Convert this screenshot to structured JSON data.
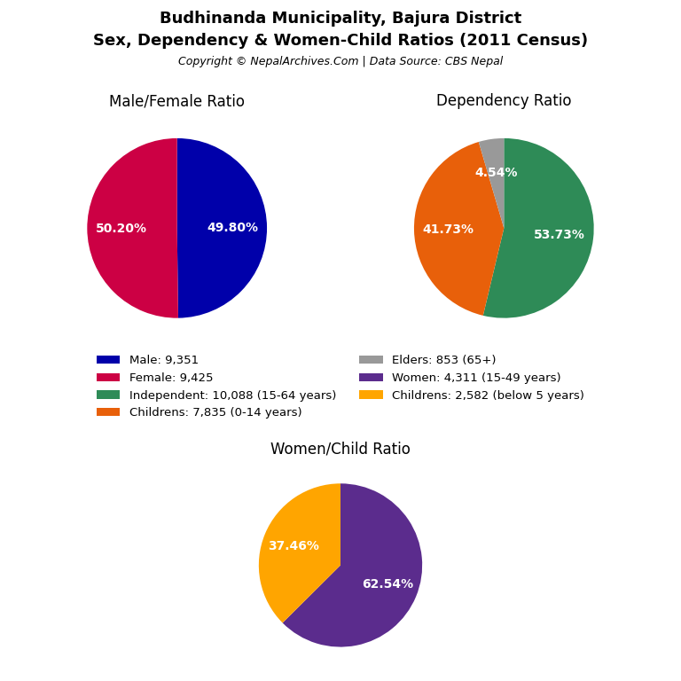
{
  "title": "Budhinanda Municipality, Bajura District",
  "subtitle": "Sex, Dependency & Women-Child Ratios (2011 Census)",
  "annotations": [
    "Copyright © NepalArchives.Com | Data Source: CBS Nepal"
  ],
  "chart_data": [
    {
      "type": "pie",
      "title": "Male/Female Ratio",
      "categories": [
        "Male: 9,351",
        "Female: 9,425"
      ],
      "values": [
        49.8,
        50.2
      ],
      "value_labels": [
        "49.80%",
        "50.20%"
      ],
      "colors": [
        "#0000AA",
        "#CC0044"
      ],
      "data_labels": true,
      "legend": "center"
    },
    {
      "type": "pie",
      "title": "Dependency Ratio",
      "categories": [
        "Independent: 10,088 (15-64 years)",
        "Childrens: 7,835 (0-14 years)",
        "Elders: 853 (65+)"
      ],
      "values": [
        53.73,
        41.73,
        4.54
      ],
      "value_labels": [
        "53.73%",
        "41.73%",
        "4.54%"
      ],
      "colors": [
        "#2E8B57",
        "#E8600A",
        "#999999"
      ],
      "data_labels": true,
      "legend": "center"
    },
    {
      "type": "pie",
      "title": "Women/Child Ratio",
      "categories": [
        "Women: 4,311 (15-49 years)",
        "Childrens: 2,582 (below 5 years)"
      ],
      "values": [
        62.54,
        37.46
      ],
      "value_labels": [
        "62.54%",
        "37.46%"
      ],
      "colors": [
        "#5B2C8D",
        "#FFA500"
      ],
      "data_labels": true,
      "legend": "center"
    }
  ]
}
